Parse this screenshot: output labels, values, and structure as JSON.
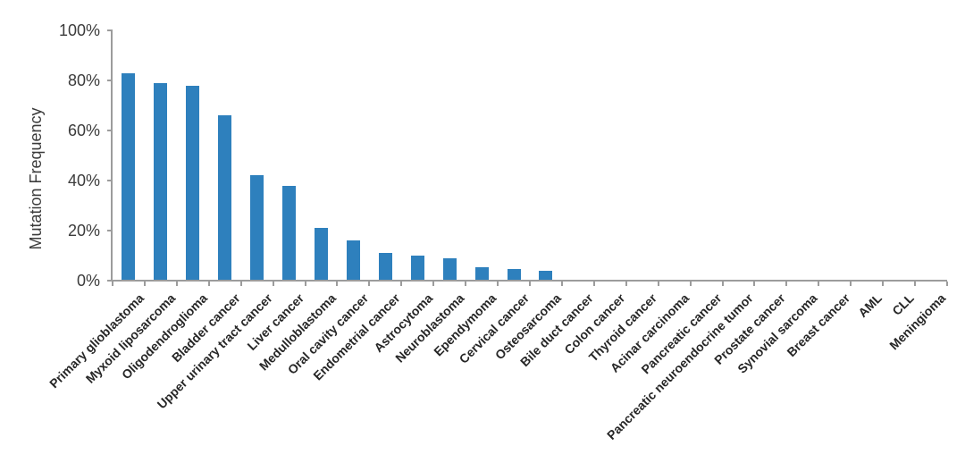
{
  "chart_data": {
    "type": "bar",
    "title": "",
    "xlabel": "",
    "ylabel": "Mutation Frequency",
    "ylim": [
      0,
      100
    ],
    "grid": false,
    "legend": null,
    "ytick_values": [
      0,
      20,
      40,
      60,
      80,
      100
    ],
    "ytick_labels": [
      "0%",
      "20%",
      "40%",
      "60%",
      "80%",
      "100%"
    ],
    "categories": [
      "Primary glioblastoma",
      "Myxoid liposarcoma",
      "Oligodendroglioma",
      "Bladder cancer",
      "Upper urinary tract cancer",
      "Liver cancer",
      "Medulloblastoma",
      "Oral cavity cancer",
      "Endometrial cancer",
      "Astrocytoma",
      "Neuroblastoma",
      "Ependymoma",
      "Cervical cancer",
      "Osteosarcoma",
      "Bile duct cancer",
      "Colon cancer",
      "Thyroid cancer",
      "Acinar carcinoma",
      "Pancreatic cancer",
      "Pancreatic neuroendocrine tumor",
      "Prostate cancer",
      "Synovial sarcoma",
      "Breast cancer",
      "AML",
      "CLL",
      "Meningioma"
    ],
    "values": [
      83,
      79,
      78,
      66,
      42,
      38,
      21,
      16,
      11,
      10,
      9,
      5.5,
      4.5,
      4,
      0,
      0,
      0,
      0,
      0,
      0,
      0,
      0,
      0,
      0,
      0,
      0
    ],
    "colors": {
      "bar": "#2e80bd",
      "axis": "#9c9c9c",
      "ytick_text": "#3b3b3b",
      "xcat_text": "#262626",
      "ytitle_text": "#3b3b3b",
      "background": "#ffffff"
    }
  }
}
